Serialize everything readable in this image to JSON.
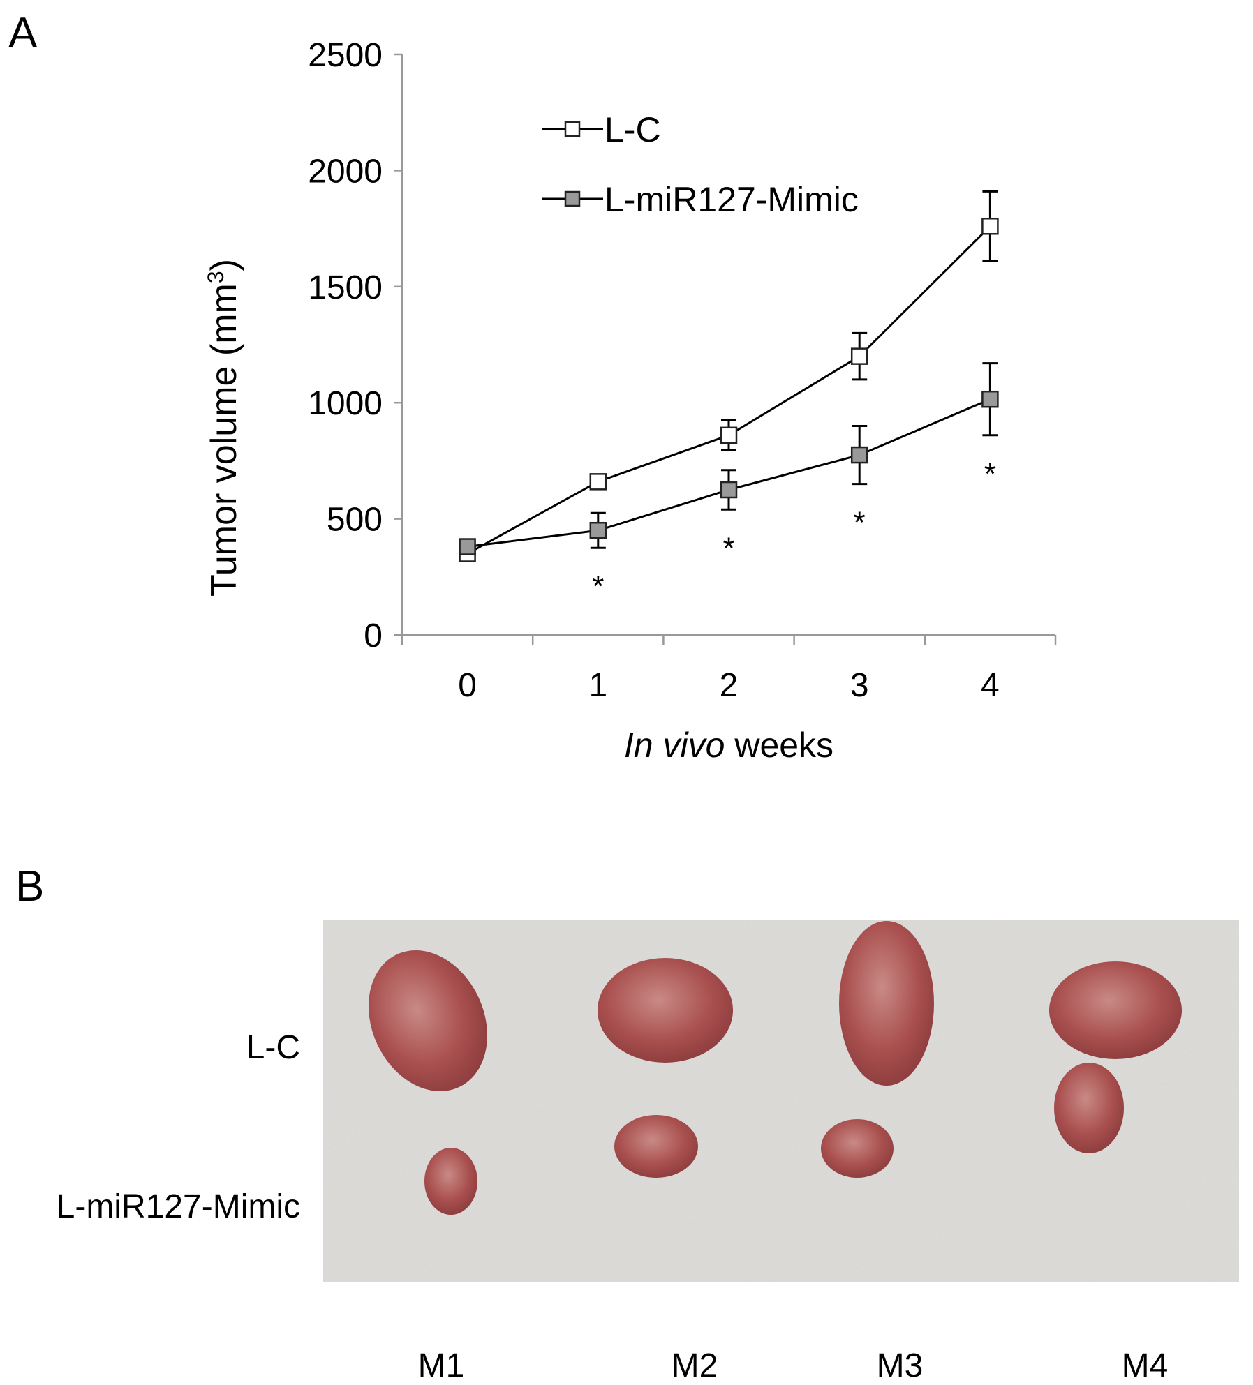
{
  "panel_a_label": "A",
  "panel_b_label": "B",
  "chart_data": {
    "type": "line",
    "xlabel_italic": "In vivo",
    "xlabel_rest": " weeks",
    "ylabel": "Tumor volume  (mm",
    "ylabel_sup": "3",
    "ylabel_close": ")",
    "x": [
      0,
      1,
      2,
      3,
      4
    ],
    "x_tick_labels": [
      "0",
      "1",
      "2",
      "3",
      "4"
    ],
    "ylim": [
      0,
      2500
    ],
    "y_ticks": [
      0,
      500,
      1000,
      1500,
      2000,
      2500
    ],
    "grid": false,
    "legend_position": "top-left",
    "series": [
      {
        "name": "L-C",
        "marker": "open-square",
        "fill": "#ffffff",
        "values": [
          350,
          660,
          860,
          1200,
          1760
        ],
        "errors": [
          0,
          0,
          65,
          100,
          150
        ]
      },
      {
        "name": "L-miR127-Mimic",
        "marker": "filled-square",
        "fill": "#999999",
        "values": [
          380,
          450,
          625,
          775,
          1015
        ],
        "errors": [
          0,
          75,
          85,
          125,
          155
        ]
      }
    ],
    "significance_marks": [
      {
        "x": 1,
        "label": "*"
      },
      {
        "x": 2,
        "label": "*"
      },
      {
        "x": 3,
        "label": "*"
      },
      {
        "x": 4,
        "label": "*"
      }
    ]
  },
  "photo": {
    "row_labels": [
      "L-C",
      "L-miR127-Mimic"
    ],
    "column_labels": [
      "M1",
      "M2",
      "M3",
      "M4"
    ]
  }
}
